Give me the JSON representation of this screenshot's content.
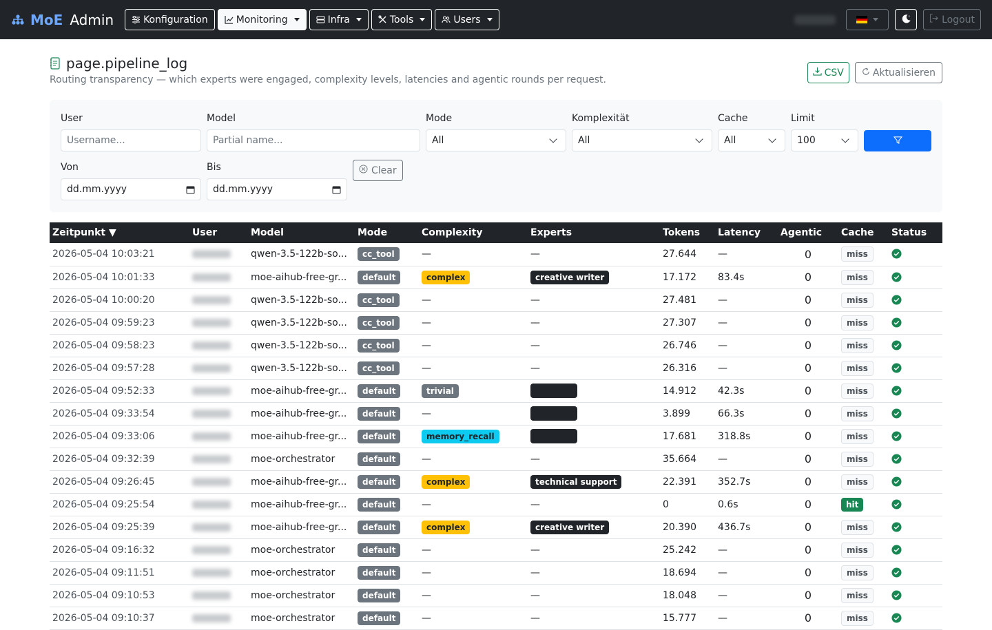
{
  "navbar": {
    "brand_moe": "MoE",
    "brand_admin": "Admin",
    "menu": [
      {
        "label": "Konfiguration",
        "icon": "sliders-icon"
      },
      {
        "label": "Monitoring",
        "icon": "chart-line-icon",
        "active": true
      },
      {
        "label": "Infra",
        "icon": "server-icon"
      },
      {
        "label": "Tools",
        "icon": "tools-icon"
      },
      {
        "label": "Users",
        "icon": "users-icon"
      }
    ],
    "logout_label": "Logout",
    "language_flag": "flag-de-icon"
  },
  "page": {
    "title": "page.pipeline_log",
    "subtitle": "Routing transparency — which experts were engaged, complexity levels, latencies and agentic rounds per request.",
    "csv_label": "CSV",
    "refresh_label": "Aktualisieren"
  },
  "filters": {
    "user_label": "User",
    "user_placeholder": "Username...",
    "model_label": "Model",
    "model_placeholder": "Partial name...",
    "mode_label": "Mode",
    "mode_value": "All",
    "complexity_label": "Komplexität",
    "complexity_value": "All",
    "cache_label": "Cache",
    "cache_value": "All",
    "limit_label": "Limit",
    "limit_value": "100",
    "from_label": "Von",
    "from_value": "dd.mm.yyyy",
    "to_label": "Bis",
    "to_value": "dd.mm.yyyy",
    "clear_label": "Clear"
  },
  "table": {
    "columns": [
      "Zeitpunkt ▼",
      "User",
      "Model",
      "Mode",
      "Complexity",
      "Experts",
      "Tokens",
      "Latency",
      "Agentic",
      "Cache",
      "Status"
    ],
    "rows": [
      {
        "time": "2026-05-04 10:03:21",
        "model": "qwen-3.5-122b-so...",
        "mode": "cc_tool",
        "complexity": "",
        "experts": "",
        "tokens": "27.644",
        "latency": "—",
        "agentic": "0",
        "cache": "miss"
      },
      {
        "time": "2026-05-04 10:01:33",
        "model": "moe-aihub-free-gr...",
        "mode": "default",
        "complexity": "complex",
        "experts": "creative writer",
        "tokens": "17.172",
        "latency": "83.4s",
        "agentic": "0",
        "cache": "miss"
      },
      {
        "time": "2026-05-04 10:00:20",
        "model": "qwen-3.5-122b-so...",
        "mode": "cc_tool",
        "complexity": "",
        "experts": "",
        "tokens": "27.481",
        "latency": "—",
        "agentic": "0",
        "cache": "miss"
      },
      {
        "time": "2026-05-04 09:59:23",
        "model": "qwen-3.5-122b-so...",
        "mode": "cc_tool",
        "complexity": "",
        "experts": "",
        "tokens": "27.307",
        "latency": "—",
        "agentic": "0",
        "cache": "miss"
      },
      {
        "time": "2026-05-04 09:58:23",
        "model": "qwen-3.5-122b-so...",
        "mode": "cc_tool",
        "complexity": "",
        "experts": "",
        "tokens": "26.746",
        "latency": "—",
        "agentic": "0",
        "cache": "miss"
      },
      {
        "time": "2026-05-04 09:57:28",
        "model": "qwen-3.5-122b-so...",
        "mode": "cc_tool",
        "complexity": "",
        "experts": "",
        "tokens": "26.316",
        "latency": "—",
        "agentic": "0",
        "cache": "miss"
      },
      {
        "time": "2026-05-04 09:52:33",
        "model": "moe-aihub-free-gr...",
        "mode": "default",
        "complexity": "trivial",
        "experts": "__blank__",
        "tokens": "14.912",
        "latency": "42.3s",
        "agentic": "0",
        "cache": "miss"
      },
      {
        "time": "2026-05-04 09:33:54",
        "model": "moe-aihub-free-gr...",
        "mode": "default",
        "complexity": "",
        "experts": "__blank__",
        "tokens": "3.899",
        "latency": "66.3s",
        "agentic": "0",
        "cache": "miss"
      },
      {
        "time": "2026-05-04 09:33:06",
        "model": "moe-aihub-free-gr...",
        "mode": "default",
        "complexity": "memory_recall",
        "experts": "__blank__",
        "tokens": "17.681",
        "latency": "318.8s",
        "agentic": "0",
        "cache": "miss"
      },
      {
        "time": "2026-05-04 09:32:39",
        "model": "moe-orchestrator",
        "mode": "default",
        "complexity": "",
        "experts": "",
        "tokens": "35.664",
        "latency": "—",
        "agentic": "0",
        "cache": "miss"
      },
      {
        "time": "2026-05-04 09:26:45",
        "model": "moe-aihub-free-gr...",
        "mode": "default",
        "complexity": "complex",
        "experts": "technical support",
        "tokens": "22.391",
        "latency": "352.7s",
        "agentic": "0",
        "cache": "miss"
      },
      {
        "time": "2026-05-04 09:25:54",
        "model": "moe-aihub-free-gr...",
        "mode": "default",
        "complexity": "",
        "experts": "",
        "tokens": "0",
        "latency": "0.6s",
        "agentic": "0",
        "cache": "hit"
      },
      {
        "time": "2026-05-04 09:25:39",
        "model": "moe-aihub-free-gr...",
        "mode": "default",
        "complexity": "complex",
        "experts": "creative writer",
        "tokens": "20.390",
        "latency": "436.7s",
        "agentic": "0",
        "cache": "miss"
      },
      {
        "time": "2026-05-04 09:16:32",
        "model": "moe-orchestrator",
        "mode": "default",
        "complexity": "",
        "experts": "",
        "tokens": "25.242",
        "latency": "—",
        "agentic": "0",
        "cache": "miss"
      },
      {
        "time": "2026-05-04 09:11:51",
        "model": "moe-orchestrator",
        "mode": "default",
        "complexity": "",
        "experts": "",
        "tokens": "18.694",
        "latency": "—",
        "agentic": "0",
        "cache": "miss"
      },
      {
        "time": "2026-05-04 09:10:53",
        "model": "moe-orchestrator",
        "mode": "default",
        "complexity": "",
        "experts": "",
        "tokens": "18.048",
        "latency": "—",
        "agentic": "0",
        "cache": "miss"
      },
      {
        "time": "2026-05-04 09:10:37",
        "model": "moe-orchestrator",
        "mode": "default",
        "complexity": "",
        "experts": "",
        "tokens": "15.777",
        "latency": "—",
        "agentic": "0",
        "cache": "miss"
      }
    ]
  },
  "colors": {
    "navbar_bg": "#212529",
    "brand_blue": "#6ea8fe",
    "primary": "#0d6efd",
    "success": "#198754",
    "warning": "#ffc107",
    "info": "#0dcaf0",
    "secondary": "#6c757d"
  }
}
